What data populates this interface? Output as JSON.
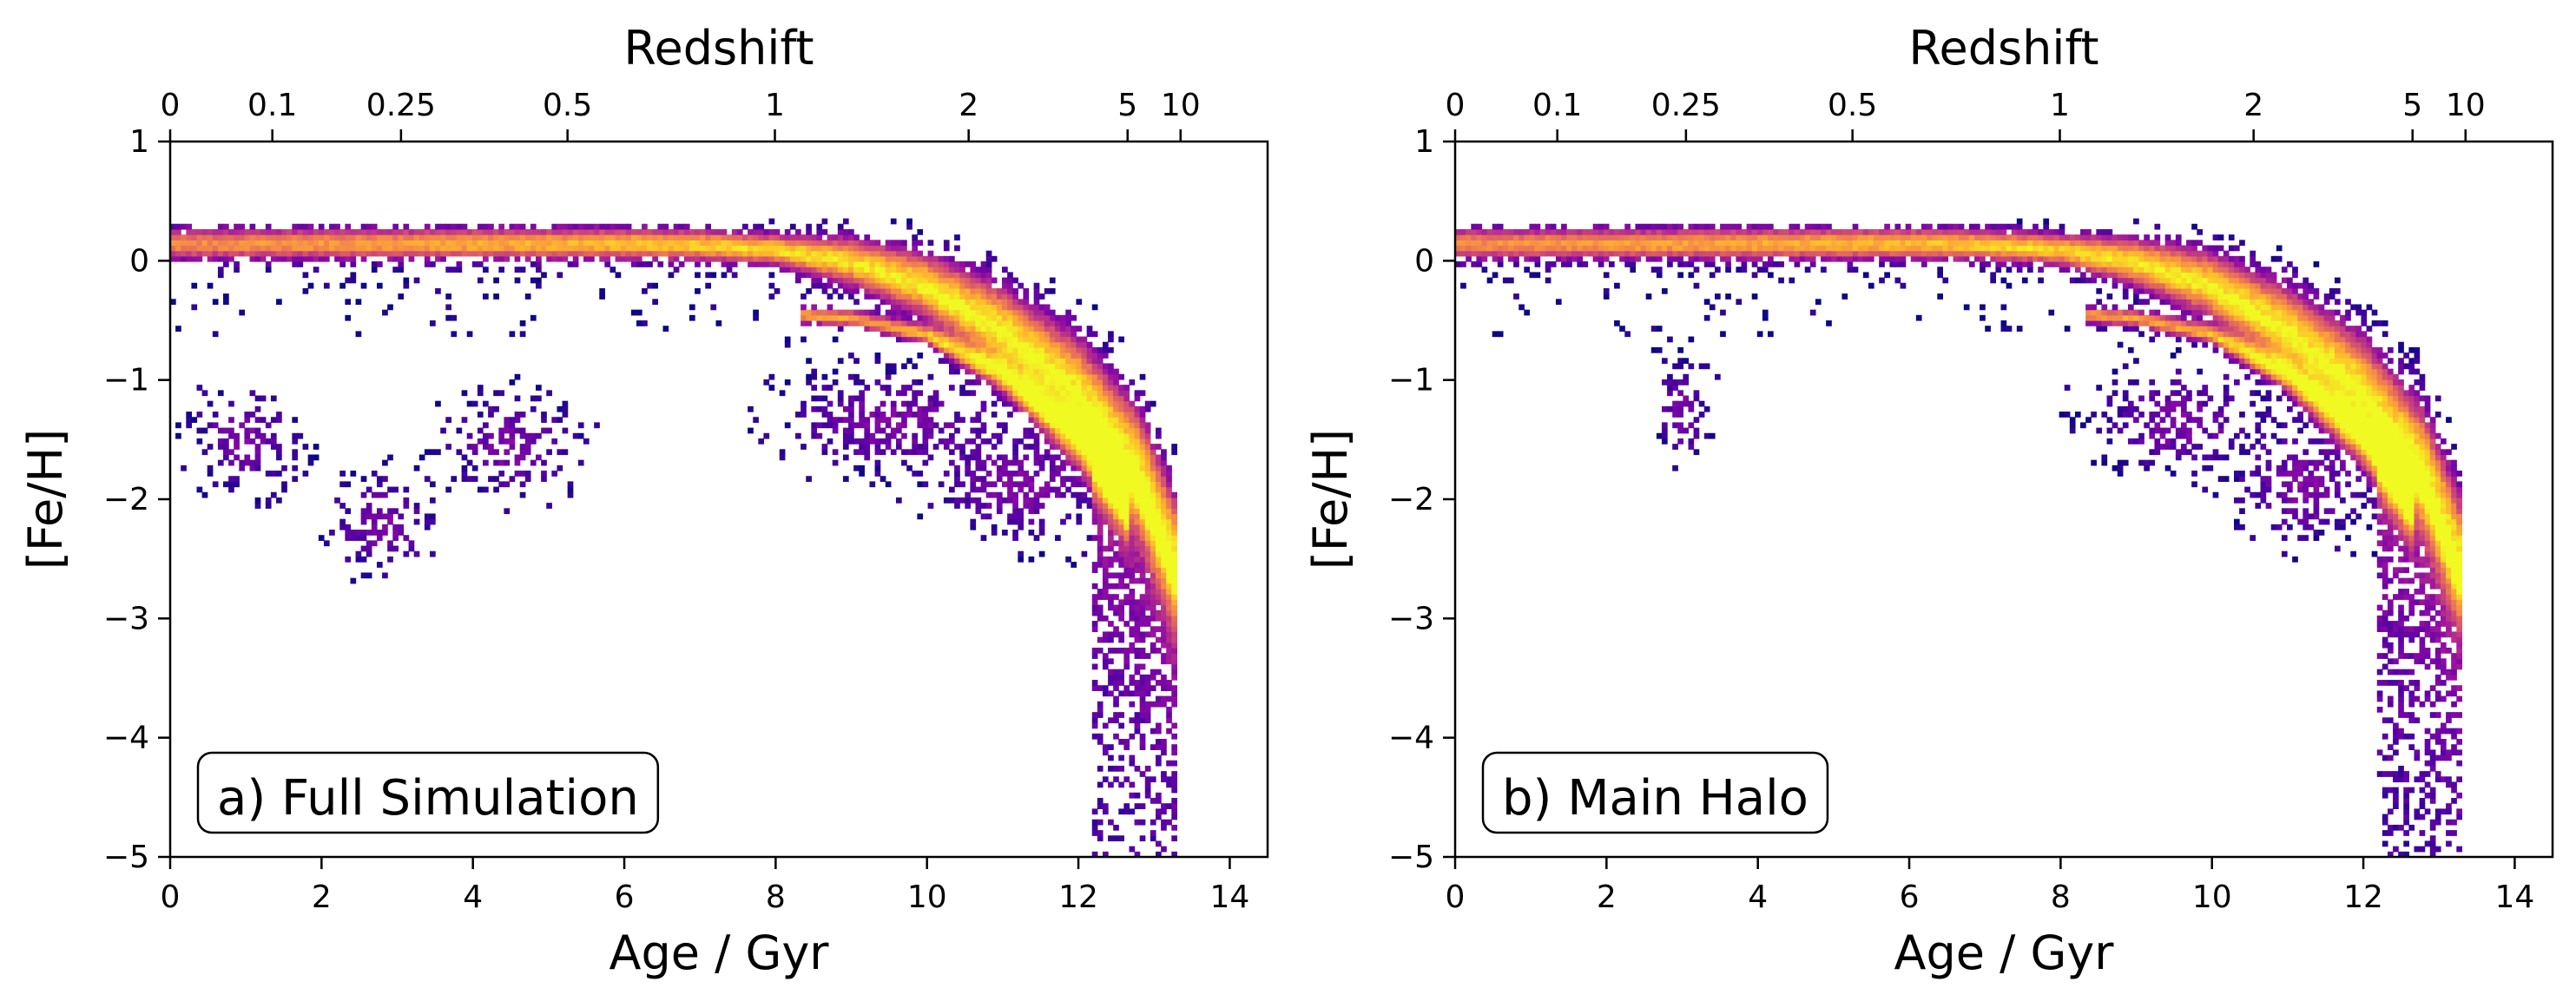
{
  "chart_data": [
    {
      "type": "heatmap",
      "annotation": "a) Full Simulation",
      "xlabel": "Age / Gyr",
      "ylabel": "[Fe/H]",
      "top_xlabel": "Redshift",
      "xlim": [
        0,
        14.5
      ],
      "ylim": [
        -5,
        1
      ],
      "xticks": [
        0,
        2,
        4,
        6,
        8,
        10,
        12,
        14
      ],
      "yticks": [
        -5,
        -4,
        -3,
        -2,
        -1,
        0,
        1
      ],
      "redshift_ticks": [
        {
          "z": "0",
          "age": 0.0
        },
        {
          "z": "0.1",
          "age": 1.35
        },
        {
          "z": "0.25",
          "age": 3.05
        },
        {
          "z": "0.5",
          "age": 5.25
        },
        {
          "z": "1",
          "age": 7.99
        },
        {
          "z": "2",
          "age": 10.55
        },
        {
          "z": "5",
          "age": 12.65
        },
        {
          "z": "10",
          "age": 13.35
        }
      ],
      "colormap": "plasma",
      "main_sequence": [
        [
          0,
          0.15
        ],
        [
          2,
          0.15
        ],
        [
          4,
          0.15
        ],
        [
          6,
          0.15
        ],
        [
          7,
          0.14
        ],
        [
          8,
          0.1
        ],
        [
          9,
          0.0
        ],
        [
          10,
          -0.2
        ],
        [
          11,
          -0.55
        ],
        [
          12,
          -1.05
        ],
        [
          12.8,
          -1.7
        ],
        [
          13.3,
          -2.5
        ]
      ],
      "branch_sequence": [
        [
          8.3,
          -0.45
        ],
        [
          9,
          -0.48
        ],
        [
          10,
          -0.62
        ],
        [
          11,
          -0.95
        ],
        [
          12,
          -1.5
        ],
        [
          12.7,
          -2.1
        ]
      ],
      "clumps": [
        {
          "age": 4.5,
          "feh": -1.55,
          "spread": 0.5
        },
        {
          "age": 2.8,
          "feh": -2.2,
          "spread": 0.4
        },
        {
          "age": 9.5,
          "feh": -1.35,
          "spread": 0.8
        },
        {
          "age": 11.2,
          "feh": -1.9,
          "spread": 0.6
        },
        {
          "age": 1.0,
          "feh": -1.5,
          "spread": 0.4
        }
      ]
    },
    {
      "type": "heatmap",
      "annotation": "b) Main Halo",
      "xlabel": "Age / Gyr",
      "ylabel": "[Fe/H]",
      "top_xlabel": "Redshift",
      "xlim": [
        0,
        14.5
      ],
      "ylim": [
        -5,
        1
      ],
      "xticks": [
        0,
        2,
        4,
        6,
        8,
        10,
        12,
        14
      ],
      "yticks": [
        -5,
        -4,
        -3,
        -2,
        -1,
        0,
        1
      ],
      "redshift_ticks": [
        {
          "z": "0",
          "age": 0.0
        },
        {
          "z": "0.1",
          "age": 1.35
        },
        {
          "z": "0.25",
          "age": 3.05
        },
        {
          "z": "0.5",
          "age": 5.25
        },
        {
          "z": "1",
          "age": 7.99
        },
        {
          "z": "2",
          "age": 10.55
        },
        {
          "z": "5",
          "age": 12.65
        },
        {
          "z": "10",
          "age": 13.35
        }
      ],
      "colormap": "plasma",
      "main_sequence": [
        [
          0,
          0.15
        ],
        [
          2,
          0.15
        ],
        [
          4,
          0.15
        ],
        [
          6,
          0.15
        ],
        [
          7,
          0.14
        ],
        [
          8,
          0.1
        ],
        [
          9,
          0.0
        ],
        [
          10,
          -0.2
        ],
        [
          11,
          -0.55
        ],
        [
          12,
          -1.05
        ],
        [
          12.8,
          -1.7
        ],
        [
          13.3,
          -2.5
        ]
      ],
      "branch_sequence": [
        [
          8.3,
          -0.45
        ],
        [
          9,
          -0.48
        ],
        [
          10,
          -0.62
        ],
        [
          11,
          -0.95
        ],
        [
          12,
          -1.5
        ],
        [
          12.7,
          -2.1
        ]
      ],
      "clumps": [
        {
          "age": 3.0,
          "feh": -1.25,
          "spread": 0.2
        },
        {
          "age": 9.5,
          "feh": -1.35,
          "spread": 0.6
        },
        {
          "age": 11.2,
          "feh": -1.9,
          "spread": 0.5
        }
      ]
    }
  ]
}
